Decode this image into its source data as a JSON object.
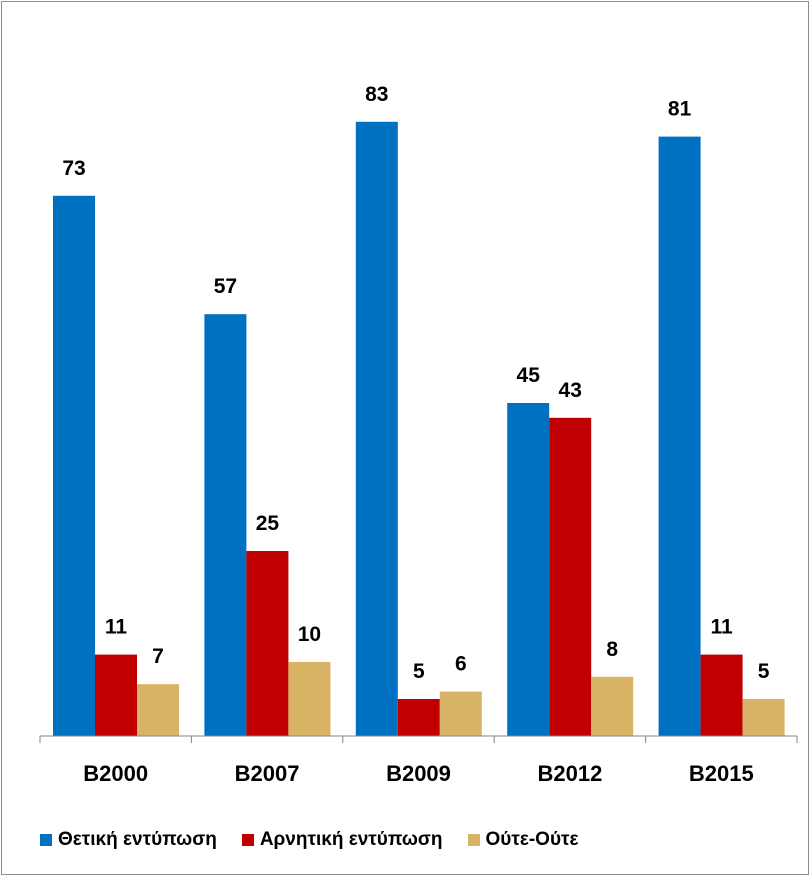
{
  "chart_data": {
    "type": "bar",
    "categories": [
      "B2000",
      "B2007",
      "B2009",
      "B2012",
      "B2015"
    ],
    "series": [
      {
        "name": "Θετική εντύπωση",
        "color": "#0070c0",
        "values": [
          73,
          57,
          83,
          45,
          81
        ]
      },
      {
        "name": "Αρνητική εντύπωση",
        "color": "#c00000",
        "values": [
          11,
          25,
          5,
          43,
          11
        ]
      },
      {
        "name": "Ούτε-Ούτε",
        "color": "#d9b365",
        "values": [
          7,
          10,
          6,
          8,
          5
        ]
      }
    ],
    "ylim": [
      0,
      100
    ],
    "grid": false,
    "legend_position": "bottom",
    "data_labels": true
  }
}
